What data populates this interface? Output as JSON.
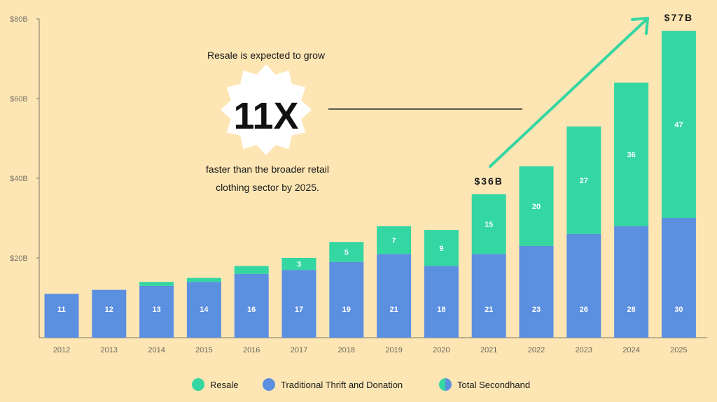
{
  "chart_data": {
    "type": "bar",
    "stacked": true,
    "categories": [
      "2012",
      "2013",
      "2014",
      "2015",
      "2016",
      "2017",
      "2018",
      "2019",
      "2020",
      "2021",
      "2022",
      "2023",
      "2024",
      "2025"
    ],
    "series": [
      {
        "name": "Traditional Thrift and Donation",
        "color": "#5B8FE0",
        "values": [
          11,
          12,
          13,
          14,
          16,
          17,
          19,
          21,
          18,
          21,
          23,
          26,
          28,
          30
        ],
        "labels": [
          "11",
          "12",
          "13",
          "14",
          "16",
          "17",
          "19",
          "21",
          "18",
          "21",
          "23",
          "26",
          "28",
          "30"
        ]
      },
      {
        "name": "Resale",
        "color": "#34D6A2",
        "values": [
          0,
          0,
          1,
          1,
          2,
          3,
          5,
          7,
          9,
          15,
          20,
          27,
          36,
          47
        ],
        "labels": [
          "",
          "",
          "",
          "",
          "",
          "3",
          "5",
          "7",
          "9",
          "15",
          "20",
          "27",
          "36",
          "47"
        ]
      }
    ],
    "ylim": [
      0,
      80
    ],
    "yticks": [
      {
        "value": 20,
        "label": "$20B"
      },
      {
        "value": 40,
        "label": "$40B"
      },
      {
        "value": 60,
        "label": "$60B"
      },
      {
        "value": 80,
        "label": "$80B"
      }
    ],
    "callouts": [
      {
        "index": 9,
        "label": "$36B"
      },
      {
        "index": 13,
        "label": "$77B"
      }
    ],
    "annotation": {
      "line1": "Resale is expected to grow",
      "big": "11X",
      "line2": "faster than the broader retail",
      "line3": "clothing sector by 2025."
    },
    "legend": [
      {
        "label": "Resale",
        "icon": "solid-circle-icon",
        "color": "#34D6A2"
      },
      {
        "label": "Traditional Thrift and Donation",
        "icon": "solid-circle-icon",
        "color": "#5B8FE0"
      },
      {
        "label": "Total Secondhand",
        "icon": "split-circle-icon",
        "colors": [
          "#34D6A2",
          "#5B8FE0"
        ]
      }
    ],
    "legend_position": "bottom-center",
    "grid": false,
    "arrow_color": "#34D6A2"
  }
}
